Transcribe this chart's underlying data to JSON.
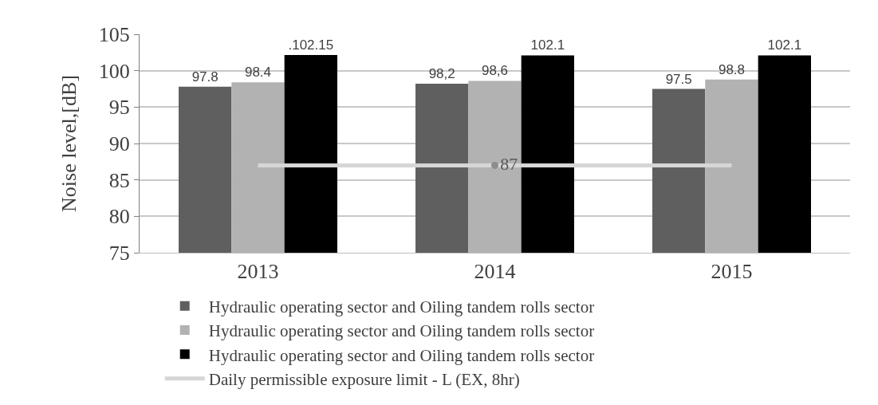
{
  "chart_data": {
    "type": "bar",
    "ylabel": "Noise level,[dB]",
    "categories": [
      "2013",
      "2014",
      "2015"
    ],
    "series": [
      {
        "name": "Hydraulic operating sector and Oiling tandem rolls sector",
        "color": "#5f5f5f",
        "values": [
          97.8,
          98.2,
          97.5
        ],
        "value_labels": [
          "97.8",
          "98,2",
          "97.5"
        ]
      },
      {
        "name": "Hydraulic operating sector and Oiling tandem rolls sector",
        "color": "#b2b2b2",
        "values": [
          98.4,
          98.6,
          98.8
        ],
        "value_labels": [
          "98.4",
          "98,6",
          "98.8"
        ]
      },
      {
        "name": "Hydraulic operating sector and Oiling tandem rolls sector",
        "color": "#000000",
        "values": [
          102.15,
          102.1,
          102.1
        ],
        "value_labels": [
          ".102.15",
          "102.1",
          "102.1"
        ]
      },
      {
        "name": "Daily permissible exposure limit - L (EX, 8hr)",
        "type": "line",
        "color": "#d6d6d6",
        "values": [
          87,
          87,
          87
        ],
        "value_labels": [
          null,
          "87",
          null
        ]
      }
    ],
    "ylim": [
      75,
      105
    ],
    "yticks": [
      75,
      80,
      85,
      90,
      95,
      100,
      105
    ],
    "grid": "y",
    "legend": "bottom"
  }
}
